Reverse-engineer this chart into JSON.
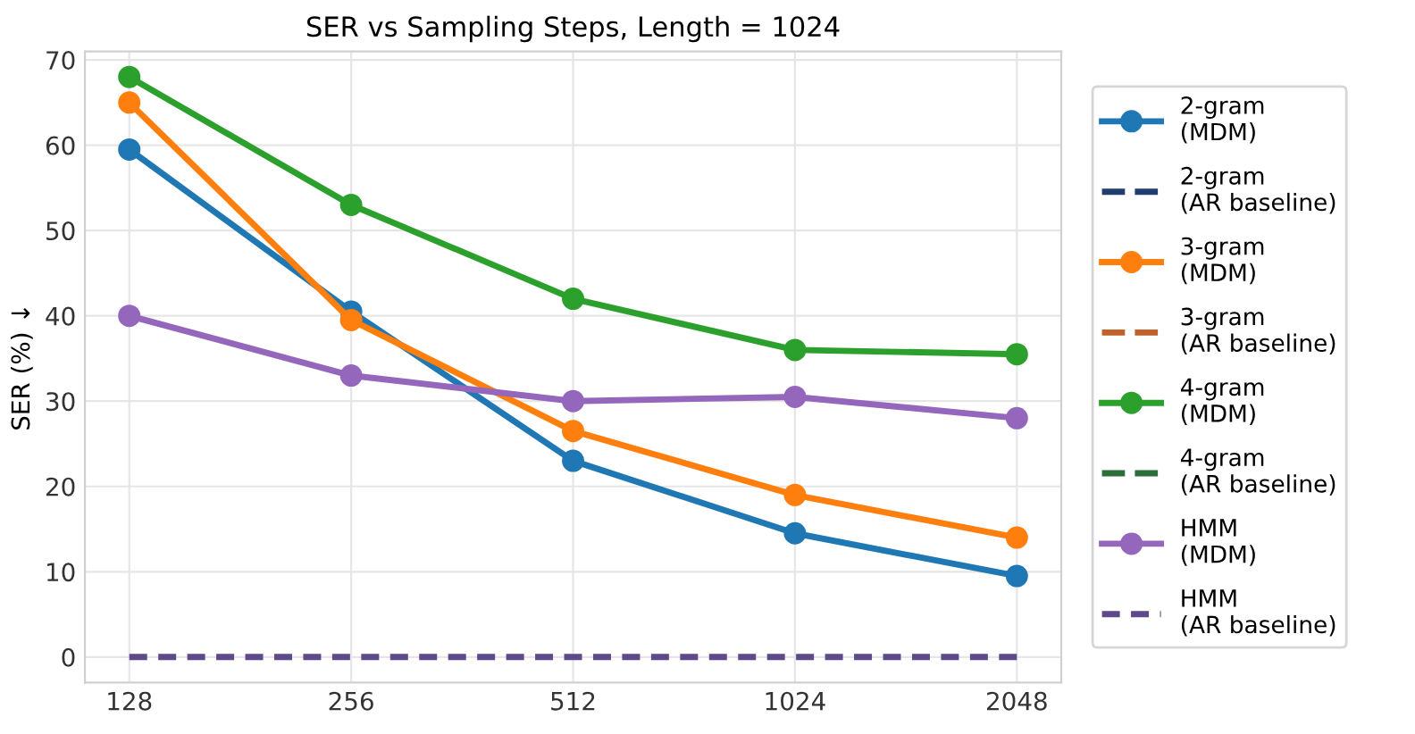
{
  "chart_data": {
    "type": "line",
    "title": "SER vs Sampling Steps, Length = 1024",
    "ylabel": "SER (%) ↓",
    "categories": [
      "128",
      "256",
      "512",
      "1024",
      "2048"
    ],
    "series": [
      {
        "name": "2-gram\n(MDM)",
        "color": "#1f77b4",
        "values": [
          59.5,
          40.5,
          23,
          14.5,
          9.5
        ],
        "marker": "circle",
        "line_style": "solid"
      },
      {
        "name": "2-gram\n(AR baseline)",
        "color": "#1f3d6e",
        "values": [
          null,
          null,
          null,
          null,
          null
        ],
        "marker": "none",
        "line_style": "dashed"
      },
      {
        "name": "3-gram\n(MDM)",
        "color": "#ff7f0e",
        "values": [
          65,
          39.5,
          26.5,
          19,
          14
        ],
        "marker": "circle",
        "line_style": "solid"
      },
      {
        "name": "3-gram\n(AR baseline)",
        "color": "#c2602a",
        "values": [
          null,
          null,
          null,
          null,
          null
        ],
        "marker": "none",
        "line_style": "dashed"
      },
      {
        "name": "4-gram\n(MDM)",
        "color": "#2ca02c",
        "values": [
          68,
          53,
          42,
          36,
          35.5
        ],
        "marker": "circle",
        "line_style": "solid"
      },
      {
        "name": "4-gram\n(AR baseline)",
        "color": "#2a6e3a",
        "values": [
          null,
          null,
          null,
          null,
          null
        ],
        "marker": "none",
        "line_style": "dashed"
      },
      {
        "name": "HMM\n(MDM)",
        "color": "#9467bd",
        "values": [
          40,
          33,
          30,
          30.5,
          28
        ],
        "marker": "circle",
        "line_style": "solid"
      },
      {
        "name": "HMM\n(AR baseline)",
        "color": "#5e4a8a",
        "values": [
          0,
          0,
          0,
          0,
          0
        ],
        "marker": "none",
        "line_style": "dashed"
      }
    ],
    "ylim": [
      -3,
      71
    ],
    "yticks": [
      0,
      10,
      20,
      30,
      40,
      50,
      60,
      70
    ],
    "grid": true,
    "legend": "right"
  }
}
